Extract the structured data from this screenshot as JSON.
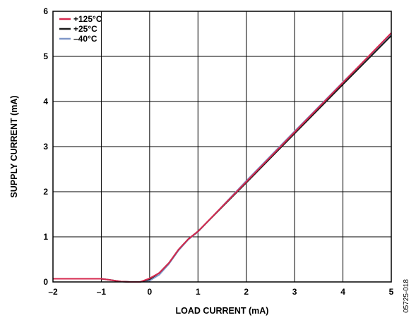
{
  "figure_id": "05725-018",
  "chart_data": {
    "type": "line",
    "xlabel": "LOAD CURRENT (mA)",
    "ylabel": "SUPPLY CURRENT (mA)",
    "xlim": [
      -2,
      5
    ],
    "ylim": [
      0,
      6
    ],
    "x_ticks": [
      -2,
      -1,
      0,
      1,
      2,
      3,
      4,
      5
    ],
    "x_tick_labels": [
      "–2",
      "–1",
      "0",
      "1",
      "2",
      "3",
      "4",
      "5"
    ],
    "y_ticks": [
      0,
      1,
      2,
      3,
      4,
      5,
      6
    ],
    "y_tick_labels": [
      "0",
      "1",
      "2",
      "3",
      "4",
      "5",
      "6"
    ],
    "grid": true,
    "legend_position": "top-left",
    "series": [
      {
        "name": "+125°C",
        "color": "#d6294f",
        "points": [
          [
            -2,
            0.07
          ],
          [
            -1,
            0.07
          ],
          [
            -0.8,
            0.04
          ],
          [
            -0.6,
            0.01
          ],
          [
            -0.4,
            0.0
          ],
          [
            -0.2,
            0.0
          ],
          [
            0,
            0.08
          ],
          [
            0.2,
            0.2
          ],
          [
            0.4,
            0.42
          ],
          [
            0.6,
            0.72
          ],
          [
            0.8,
            0.95
          ],
          [
            1,
            1.12
          ],
          [
            2,
            2.22
          ],
          [
            3,
            3.32
          ],
          [
            4,
            4.42
          ],
          [
            5,
            5.52
          ]
        ]
      },
      {
        "name": "+25°C",
        "color": "#1a1a1a",
        "points": [
          [
            -2,
            0.07
          ],
          [
            -1,
            0.07
          ],
          [
            -0.8,
            0.04
          ],
          [
            -0.6,
            0.01
          ],
          [
            -0.4,
            0.0
          ],
          [
            -0.2,
            0.0
          ],
          [
            0,
            0.06
          ],
          [
            0.2,
            0.2
          ],
          [
            0.4,
            0.42
          ],
          [
            0.6,
            0.72
          ],
          [
            0.8,
            0.95
          ],
          [
            1,
            1.12
          ],
          [
            2,
            2.2
          ],
          [
            3,
            3.29
          ],
          [
            4,
            4.38
          ],
          [
            5,
            5.46
          ]
        ]
      },
      {
        "name": "–40°C",
        "color": "#7f97c8",
        "points": [
          [
            -2,
            0.07
          ],
          [
            -1,
            0.07
          ],
          [
            -0.8,
            0.04
          ],
          [
            -0.6,
            0.01
          ],
          [
            -0.4,
            0.0
          ],
          [
            -0.2,
            0.0
          ],
          [
            0,
            0.03
          ],
          [
            0.2,
            0.16
          ],
          [
            0.4,
            0.4
          ],
          [
            0.6,
            0.7
          ],
          [
            0.8,
            0.94
          ],
          [
            1,
            1.11
          ],
          [
            2,
            2.24
          ],
          [
            3,
            3.34
          ],
          [
            4,
            4.43
          ],
          [
            5,
            5.5
          ]
        ]
      }
    ]
  }
}
